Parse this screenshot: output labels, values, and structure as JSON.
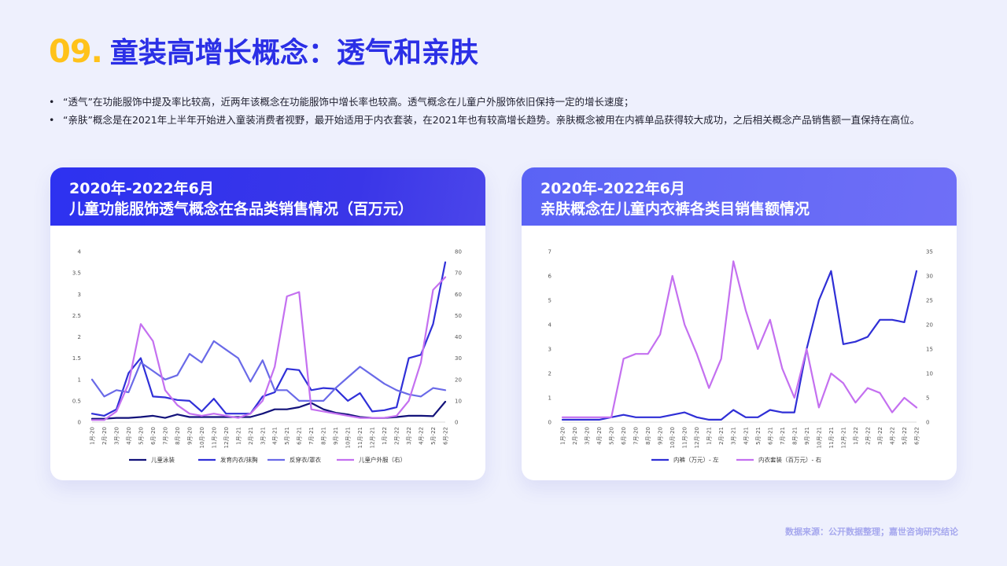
{
  "header": {
    "number": "09.",
    "title": "童装高增长概念：透气和亲肤"
  },
  "bullets": [
    "“透气”在功能服饰中提及率比较高，近两年该概念在功能服饰中增长率也较高。透气概念在儿童户外服饰依旧保持一定的增长速度；",
    "“亲肤”概念是在2021年上半年开始进入童装消费者视野，最开始适用于内衣套装，在2021年也有较高增长趋势。亲肤概念被用在内裤单品获得较大成功，之后相关概念产品销售额一直保持在高位。"
  ],
  "bullet_symbol": "•",
  "source": "数据来源：公开数据整理；嘉世咨询研究结论",
  "colors": {
    "title_number": "#ffc21a",
    "title_text": "#2b2fe6",
    "background": "#eef0fd"
  },
  "chart_data": [
    {
      "type": "line",
      "title_line1": "2020年-2022年6月",
      "title_line2": "儿童功能服饰透气概念在各品类销售情况（百万元）",
      "categories": [
        "1月-20",
        "2月-20",
        "3月-20",
        "4月-20",
        "5月-20",
        "6月-20",
        "7月-20",
        "8月-20",
        "9月-20",
        "10月-20",
        "11月-20",
        "12月-20",
        "1月-21",
        "2月-21",
        "3月-21",
        "4月-21",
        "5月-21",
        "6月-21",
        "7月-21",
        "8月-21",
        "9月-21",
        "10月-21",
        "11月-21",
        "12月-21",
        "1月-22",
        "2月-22",
        "3月-22",
        "4月-22",
        "5月-22",
        "6月-22"
      ],
      "ylim_left": [
        0,
        4
      ],
      "yticks_left": [
        "0",
        "0.5",
        "1",
        "1.5",
        "2",
        "2.5",
        "3",
        "3.5",
        "4"
      ],
      "ylim_right": [
        0,
        80
      ],
      "yticks_right": [
        "0",
        "10",
        "20",
        "30",
        "40",
        "50",
        "60",
        "70",
        "80"
      ],
      "series": [
        {
          "name": "儿童泳装",
          "axis": "left",
          "color": "#12127a",
          "values": [
            0.08,
            0.08,
            0.1,
            0.1,
            0.12,
            0.15,
            0.1,
            0.18,
            0.12,
            0.12,
            0.12,
            0.12,
            0.12,
            0.12,
            0.2,
            0.3,
            0.3,
            0.35,
            0.45,
            0.3,
            0.22,
            0.18,
            0.12,
            0.1,
            0.1,
            0.12,
            0.15,
            0.15,
            0.14,
            0.48
          ]
        },
        {
          "name": "发育内衣/抹胸",
          "axis": "left",
          "color": "#3030d8",
          "values": [
            0.2,
            0.15,
            0.3,
            1.15,
            1.5,
            0.6,
            0.58,
            0.52,
            0.5,
            0.25,
            0.55,
            0.2,
            0.2,
            0.2,
            0.6,
            0.7,
            1.25,
            1.22,
            0.75,
            0.8,
            0.78,
            0.5,
            0.68,
            0.25,
            0.28,
            0.35,
            1.5,
            1.58,
            2.3,
            3.75
          ]
        },
        {
          "name": "反穿衣/罩衣",
          "axis": "right",
          "color": "#6a6ae8",
          "values": [
            20,
            12,
            15,
            14,
            28,
            24,
            20,
            22,
            32,
            28,
            38,
            34,
            30,
            19,
            29,
            15,
            15,
            10,
            10,
            10,
            16,
            21,
            26,
            22,
            18,
            15,
            13,
            12,
            16,
            15
          ]
        },
        {
          "name": "儿童户外服（右）",
          "axis": "right",
          "color": "#c470f0",
          "values": [
            1,
            1,
            5,
            18,
            46,
            38,
            15,
            8,
            4,
            3,
            4,
            3,
            2,
            4,
            10,
            26,
            59,
            61,
            6,
            5,
            4,
            3,
            2,
            2,
            2,
            3,
            10,
            28,
            62,
            68
          ]
        }
      ]
    },
    {
      "type": "line",
      "title_line1": "2020年-2022年6月",
      "title_line2": "亲肤概念在儿童内衣裤各类目销售额情况",
      "categories": [
        "1月-20",
        "2月-20",
        "3月-20",
        "4月-20",
        "5月-20",
        "6月-20",
        "7月-20",
        "8月-20",
        "9月-20",
        "10月-20",
        "11月-20",
        "12月-20",
        "1月-21",
        "2月-21",
        "3月-21",
        "4月-21",
        "5月-21",
        "6月-21",
        "7月-21",
        "8月-21",
        "9月-21",
        "10月-21",
        "11月-21",
        "12月-21",
        "1月-22",
        "2月-22",
        "3月-22",
        "4月-22",
        "5月-22",
        "6月-22"
      ],
      "ylim_left": [
        0,
        7
      ],
      "yticks_left": [
        "0",
        "1",
        "2",
        "3",
        "4",
        "5",
        "6",
        "7"
      ],
      "ylim_right": [
        0,
        35
      ],
      "yticks_right": [
        "0",
        "5",
        "10",
        "15",
        "20",
        "25",
        "30",
        "35"
      ],
      "series": [
        {
          "name": "内裤（万元）- 左",
          "axis": "left",
          "color": "#2f2fd6",
          "values": [
            0.1,
            0.1,
            0.1,
            0.1,
            0.2,
            0.3,
            0.2,
            0.2,
            0.2,
            0.3,
            0.4,
            0.2,
            0.1,
            0.1,
            0.5,
            0.2,
            0.2,
            0.5,
            0.4,
            0.4,
            3,
            5,
            6.2,
            3.2,
            3.3,
            3.5,
            4.2,
            4.2,
            4.1,
            6.2
          ]
        },
        {
          "name": "内衣套装（百万元）- 右",
          "axis": "right",
          "color": "#c470f0",
          "values": [
            1,
            1,
            1,
            1,
            1,
            13,
            14,
            14,
            18,
            30,
            20,
            14,
            7,
            13,
            33,
            23,
            15,
            21,
            11,
            5,
            15,
            3,
            10,
            8,
            4,
            7,
            6,
            2,
            5,
            3
          ]
        }
      ]
    }
  ]
}
